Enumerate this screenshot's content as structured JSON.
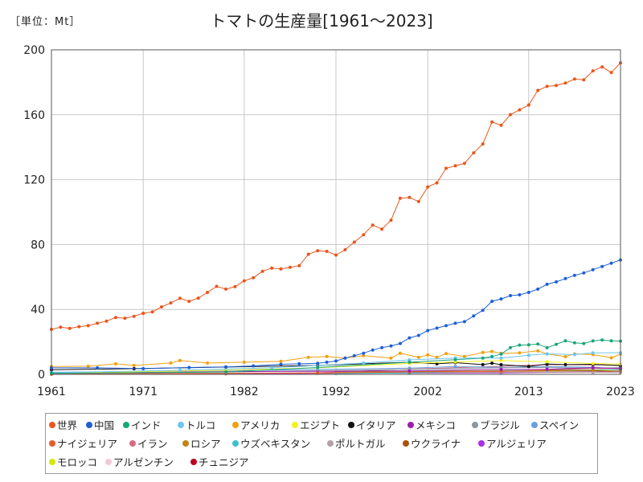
{
  "unit_label": "［単位：Mt］",
  "chart_data": {
    "type": "line",
    "title": "トマトの生産量[1961～2023]",
    "xlim": [
      1961,
      2023
    ],
    "ylim": [
      0,
      200
    ],
    "x_ticks": [
      1961,
      1971,
      1982,
      1992,
      2002,
      2013,
      2023
    ],
    "y_ticks": [
      0,
      40,
      80,
      120,
      160,
      200
    ],
    "grid": true,
    "legend_position": "bottom",
    "series": [
      {
        "name": "世界",
        "color": "#e8561c",
        "points": [
          [
            1961,
            27.7
          ],
          [
            1962,
            29.1
          ],
          [
            1963,
            28.3
          ],
          [
            1964,
            29.4
          ],
          [
            1965,
            30.0
          ],
          [
            1966,
            31.5
          ],
          [
            1967,
            32.8
          ],
          [
            1968,
            35.0
          ],
          [
            1969,
            34.6
          ],
          [
            1970,
            35.8
          ],
          [
            1971,
            37.6
          ],
          [
            1972,
            38.5
          ],
          [
            1973,
            41.6
          ],
          [
            1974,
            44.0
          ],
          [
            1975,
            46.9
          ],
          [
            1976,
            45.0
          ],
          [
            1977,
            47.0
          ],
          [
            1978,
            50.5
          ],
          [
            1979,
            54.2
          ],
          [
            1980,
            52.5
          ],
          [
            1981,
            54.0
          ],
          [
            1982,
            57.6
          ],
          [
            1983,
            59.5
          ],
          [
            1984,
            63.5
          ],
          [
            1985,
            65.5
          ],
          [
            1986,
            65.0
          ],
          [
            1987,
            66.0
          ],
          [
            1988,
            67.0
          ],
          [
            1989,
            74.0
          ],
          [
            1990,
            76.2
          ],
          [
            1991,
            75.8
          ],
          [
            1992,
            73.5
          ],
          [
            1993,
            76.8
          ],
          [
            1994,
            81.5
          ],
          [
            1995,
            86.0
          ],
          [
            1996,
            92.0
          ],
          [
            1997,
            89.5
          ],
          [
            1998,
            95.0
          ],
          [
            1999,
            108.5
          ],
          [
            2000,
            109.0
          ],
          [
            2001,
            106.5
          ],
          [
            2002,
            115.5
          ],
          [
            2003,
            118.0
          ],
          [
            2004,
            127.0
          ],
          [
            2005,
            128.5
          ],
          [
            2006,
            130.0
          ],
          [
            2007,
            136.5
          ],
          [
            2008,
            142.0
          ],
          [
            2009,
            155.5
          ],
          [
            2010,
            153.5
          ],
          [
            2011,
            160.0
          ],
          [
            2012,
            163.0
          ],
          [
            2013,
            166.0
          ],
          [
            2014,
            175.0
          ],
          [
            2015,
            177.5
          ],
          [
            2016,
            178.0
          ],
          [
            2017,
            179.5
          ],
          [
            2018,
            182.0
          ],
          [
            2019,
            181.5
          ],
          [
            2020,
            187.0
          ],
          [
            2021,
            189.5
          ],
          [
            2022,
            186.0
          ],
          [
            2023,
            192.0
          ]
        ]
      },
      {
        "name": "中国",
        "color": "#1f5fd6",
        "points": [
          [
            1961,
            4.0
          ],
          [
            1966,
            4.0
          ],
          [
            1971,
            3.5
          ],
          [
            1976,
            4.2
          ],
          [
            1980,
            4.6
          ],
          [
            1983,
            5.2
          ],
          [
            1986,
            6.2
          ],
          [
            1988,
            6.5
          ],
          [
            1990,
            6.8
          ],
          [
            1991,
            7.5
          ],
          [
            1992,
            8.2
          ],
          [
            1993,
            10.0
          ],
          [
            1994,
            11.5
          ],
          [
            1995,
            13.0
          ],
          [
            1996,
            15.0
          ],
          [
            1997,
            16.5
          ],
          [
            1998,
            17.5
          ],
          [
            1999,
            19.0
          ],
          [
            2000,
            22.5
          ],
          [
            2001,
            24.0
          ],
          [
            2002,
            27.0
          ],
          [
            2003,
            28.5
          ],
          [
            2004,
            30.0
          ],
          [
            2005,
            31.5
          ],
          [
            2006,
            32.5
          ],
          [
            2007,
            36.0
          ],
          [
            2008,
            39.5
          ],
          [
            2009,
            45.0
          ],
          [
            2010,
            46.5
          ],
          [
            2011,
            48.5
          ],
          [
            2012,
            49.0
          ],
          [
            2013,
            50.5
          ],
          [
            2014,
            52.5
          ],
          [
            2015,
            55.5
          ],
          [
            2016,
            57.0
          ],
          [
            2017,
            59.0
          ],
          [
            2018,
            61.0
          ],
          [
            2019,
            62.5
          ],
          [
            2020,
            64.5
          ],
          [
            2021,
            66.5
          ],
          [
            2022,
            68.5
          ],
          [
            2023,
            70.5
          ]
        ]
      },
      {
        "name": "インド",
        "color": "#1aa57a",
        "points": [
          [
            1961,
            0.6
          ],
          [
            1980,
            1.5
          ],
          [
            1990,
            4.2
          ],
          [
            2000,
            7.5
          ],
          [
            2005,
            9.0
          ],
          [
            2008,
            10.0
          ],
          [
            2009,
            11.0
          ],
          [
            2010,
            12.5
          ],
          [
            2011,
            16.5
          ],
          [
            2012,
            18.0
          ],
          [
            2013,
            18.2
          ],
          [
            2014,
            18.7
          ],
          [
            2015,
            16.4
          ],
          [
            2016,
            18.5
          ],
          [
            2017,
            20.7
          ],
          [
            2018,
            19.4
          ],
          [
            2019,
            19.0
          ],
          [
            2020,
            20.6
          ],
          [
            2021,
            21.2
          ],
          [
            2022,
            20.7
          ],
          [
            2023,
            20.5
          ]
        ]
      },
      {
        "name": "トルコ",
        "color": "#6ec6f0",
        "points": [
          [
            1961,
            1.0
          ],
          [
            1975,
            2.5
          ],
          [
            1985,
            4.0
          ],
          [
            1995,
            7.0
          ],
          [
            2000,
            8.9
          ],
          [
            2005,
            10.0
          ],
          [
            2010,
            10.0
          ],
          [
            2013,
            11.8
          ],
          [
            2015,
            12.6
          ],
          [
            2018,
            12.2
          ],
          [
            2020,
            13.2
          ],
          [
            2023,
            13.3
          ]
        ]
      },
      {
        "name": "アメリカ",
        "color": "#f0a010",
        "points": [
          [
            1961,
            4.8
          ],
          [
            1965,
            5.0
          ],
          [
            1968,
            6.5
          ],
          [
            1970,
            5.5
          ],
          [
            1974,
            7.0
          ],
          [
            1975,
            8.5
          ],
          [
            1978,
            7.0
          ],
          [
            1982,
            7.5
          ],
          [
            1986,
            8.0
          ],
          [
            1989,
            10.5
          ],
          [
            1991,
            11.0
          ],
          [
            1993,
            10.0
          ],
          [
            1995,
            11.5
          ],
          [
            1998,
            10.0
          ],
          [
            1999,
            13.0
          ],
          [
            2001,
            10.5
          ],
          [
            2002,
            12.0
          ],
          [
            2003,
            10.5
          ],
          [
            2004,
            12.8
          ],
          [
            2006,
            11.0
          ],
          [
            2008,
            13.5
          ],
          [
            2009,
            14.1
          ],
          [
            2010,
            12.9
          ],
          [
            2012,
            13.2
          ],
          [
            2014,
            14.5
          ],
          [
            2015,
            12.6
          ],
          [
            2017,
            10.9
          ],
          [
            2018,
            12.6
          ],
          [
            2020,
            12.2
          ],
          [
            2022,
            10.2
          ],
          [
            2023,
            12.5
          ]
        ]
      },
      {
        "name": "エジプト",
        "color": "#f4f01a",
        "points": [
          [
            1961,
            0.8
          ],
          [
            1980,
            2.5
          ],
          [
            1990,
            4.0
          ],
          [
            2000,
            6.8
          ],
          [
            2005,
            7.6
          ],
          [
            2010,
            8.5
          ],
          [
            2015,
            7.7
          ],
          [
            2020,
            6.7
          ],
          [
            2023,
            6.3
          ]
        ]
      },
      {
        "name": "イタリア",
        "color": "#111111",
        "points": [
          [
            1961,
            2.8
          ],
          [
            1970,
            3.5
          ],
          [
            1980,
            4.5
          ],
          [
            1990,
            5.5
          ],
          [
            2000,
            7.5
          ],
          [
            2003,
            6.5
          ],
          [
            2005,
            7.2
          ],
          [
            2008,
            6.0
          ],
          [
            2009,
            6.9
          ],
          [
            2010,
            6.0
          ],
          [
            2013,
            4.9
          ],
          [
            2015,
            6.4
          ],
          [
            2017,
            6.0
          ],
          [
            2020,
            6.2
          ],
          [
            2023,
            5.4
          ]
        ]
      },
      {
        "name": "メキシコ",
        "color": "#9a1fa8",
        "points": [
          [
            1961,
            0.6
          ],
          [
            1980,
            1.7
          ],
          [
            2000,
            2.1
          ],
          [
            2010,
            3.0
          ],
          [
            2015,
            3.1
          ],
          [
            2020,
            4.1
          ],
          [
            2023,
            3.5
          ]
        ]
      },
      {
        "name": "ブラジル",
        "color": "#8b96a3",
        "points": [
          [
            1961,
            0.5
          ],
          [
            1980,
            1.5
          ],
          [
            2000,
            3.0
          ],
          [
            2010,
            4.1
          ],
          [
            2015,
            4.2
          ],
          [
            2020,
            3.8
          ],
          [
            2023,
            4.2
          ]
        ]
      },
      {
        "name": "スペイン",
        "color": "#6a9ee0",
        "points": [
          [
            1961,
            1.3
          ],
          [
            1980,
            2.3
          ],
          [
            1990,
            3.0
          ],
          [
            2000,
            3.8
          ],
          [
            2005,
            4.8
          ],
          [
            2010,
            4.3
          ],
          [
            2015,
            4.8
          ],
          [
            2020,
            4.3
          ],
          [
            2023,
            3.6
          ]
        ]
      },
      {
        "name": "ナイジェリア",
        "color": "#e85a2a",
        "points": [
          [
            1961,
            0.2
          ],
          [
            1990,
            0.8
          ],
          [
            2000,
            1.5
          ],
          [
            2010,
            1.8
          ],
          [
            2020,
            3.7
          ],
          [
            2023,
            3.6
          ]
        ]
      },
      {
        "name": "イラン",
        "color": "#d66a84",
        "points": [
          [
            1961,
            0.1
          ],
          [
            1980,
            0.5
          ],
          [
            1990,
            1.0
          ],
          [
            2000,
            3.2
          ],
          [
            2010,
            5.0
          ],
          [
            2015,
            6.0
          ],
          [
            2020,
            5.8
          ],
          [
            2023,
            5.7
          ]
        ]
      },
      {
        "name": "ロシア",
        "color": "#c08410",
        "points": [
          [
            1992,
            1.5
          ],
          [
            2000,
            1.9
          ],
          [
            2010,
            2.1
          ],
          [
            2020,
            2.5
          ],
          [
            2023,
            2.3
          ]
        ]
      },
      {
        "name": "ウズベキスタン",
        "color": "#3cc3c8",
        "points": [
          [
            1992,
            0.5
          ],
          [
            2000,
            0.9
          ],
          [
            2010,
            2.3
          ],
          [
            2015,
            2.5
          ],
          [
            2020,
            2.7
          ],
          [
            2023,
            2.9
          ]
        ]
      },
      {
        "name": "ポルトガル",
        "color": "#b3a1a7",
        "points": [
          [
            1961,
            0.4
          ],
          [
            1980,
            0.8
          ],
          [
            2000,
            1.0
          ],
          [
            2010,
            1.4
          ],
          [
            2020,
            1.3
          ],
          [
            2023,
            1.4
          ]
        ]
      },
      {
        "name": "ウクライナ",
        "color": "#a8520e",
        "points": [
          [
            1992,
            1.0
          ],
          [
            2000,
            1.2
          ],
          [
            2010,
            2.0
          ],
          [
            2020,
            2.2
          ],
          [
            2023,
            1.5
          ]
        ]
      },
      {
        "name": "アルジェリア",
        "color": "#a82ee8",
        "points": [
          [
            1961,
            0.1
          ],
          [
            1990,
            0.6
          ],
          [
            2000,
            0.8
          ],
          [
            2010,
            1.0
          ],
          [
            2020,
            1.5
          ],
          [
            2023,
            1.7
          ]
        ]
      },
      {
        "name": "モロッコ",
        "color": "#d6e80a",
        "points": [
          [
            1961,
            0.2
          ],
          [
            1990,
            0.6
          ],
          [
            2000,
            0.9
          ],
          [
            2010,
            1.3
          ],
          [
            2020,
            1.4
          ],
          [
            2023,
            1.5
          ]
        ]
      },
      {
        "name": "アルゼンチン",
        "color": "#f0c8d8",
        "points": [
          [
            1961,
            0.3
          ],
          [
            1980,
            0.6
          ],
          [
            2000,
            0.7
          ],
          [
            2010,
            0.7
          ],
          [
            2020,
            1.1
          ],
          [
            2023,
            1.0
          ]
        ]
      },
      {
        "name": "チュニジア",
        "color": "#c00020",
        "points": [
          [
            1961,
            0.1
          ],
          [
            1980,
            0.4
          ],
          [
            2000,
            0.9
          ],
          [
            2010,
            1.1
          ],
          [
            2020,
            1.3
          ],
          [
            2023,
            1.2
          ]
        ]
      }
    ]
  }
}
